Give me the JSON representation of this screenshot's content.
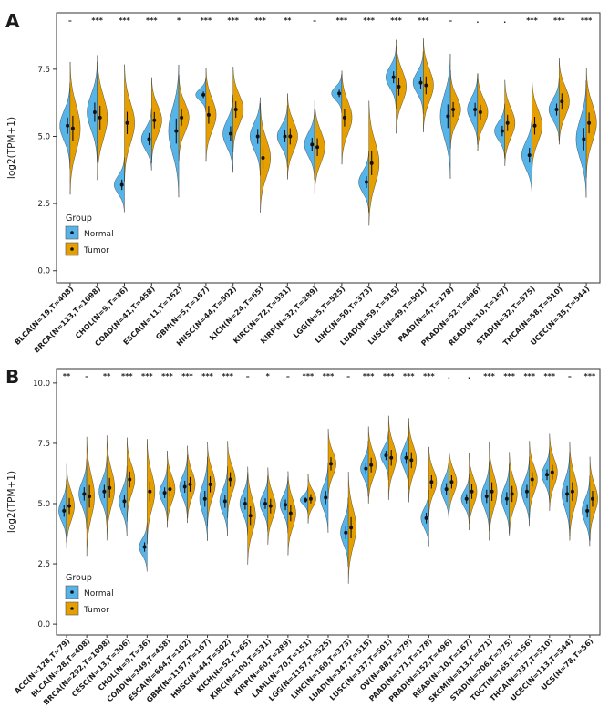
{
  "figure": {
    "background": "#ffffff",
    "colors": {
      "normal": "#56B4E9",
      "tumor": "#E69F00",
      "axis": "#333333"
    },
    "legend": {
      "title": "Group",
      "items": [
        {
          "label": "Normal",
          "key": "normal"
        },
        {
          "label": "Tumor",
          "key": "tumor"
        }
      ]
    }
  },
  "chart_data": [
    {
      "type": "violin",
      "variant": "split-violin-normal-vs-tumor",
      "panel_letter": "A",
      "ylabel": "log2(TPM+1)",
      "ylim": [
        -0.45,
        9.6
      ],
      "yticks": [
        0.0,
        2.5,
        5.0,
        7.5
      ],
      "legend_position": "inside-bottom-left",
      "categories": [
        {
          "label": "BLCA(N=19,T=408)",
          "sig": "–",
          "normal": {
            "mean": 5.4,
            "sd": 0.55
          },
          "tumor": {
            "mean": 5.3,
            "sd": 0.85
          }
        },
        {
          "label": "BRCA(N=113,T=1098)",
          "sig": "***",
          "normal": {
            "mean": 5.9,
            "sd": 0.65
          },
          "tumor": {
            "mean": 5.7,
            "sd": 0.8
          }
        },
        {
          "label": "CHOL(N=9,T=36)",
          "sig": "***",
          "normal": {
            "mean": 3.2,
            "sd": 0.35
          },
          "tumor": {
            "mean": 5.5,
            "sd": 0.75
          }
        },
        {
          "label": "COAD(N=41,T=458)",
          "sig": "***",
          "normal": {
            "mean": 4.9,
            "sd": 0.4
          },
          "tumor": {
            "mean": 5.6,
            "sd": 0.55
          }
        },
        {
          "label": "ESCA(N=11,T=162)",
          "sig": "*",
          "normal": {
            "mean": 5.2,
            "sd": 0.85
          },
          "tumor": {
            "mean": 5.7,
            "sd": 0.55
          }
        },
        {
          "label": "GBM(N=5,T=167)",
          "sig": "***",
          "normal": {
            "mean": 6.55,
            "sd": 0.22
          },
          "tumor": {
            "mean": 5.8,
            "sd": 0.6
          }
        },
        {
          "label": "HNSC(N=44,T=502)",
          "sig": "***",
          "normal": {
            "mean": 5.1,
            "sd": 0.5
          },
          "tumor": {
            "mean": 6.0,
            "sd": 0.55
          }
        },
        {
          "label": "KICH(N=24,T=65)",
          "sig": "***",
          "normal": {
            "mean": 5.0,
            "sd": 0.5
          },
          "tumor": {
            "mean": 4.2,
            "sd": 0.7
          }
        },
        {
          "label": "KIRC(N=72,T=531)",
          "sig": "**",
          "normal": {
            "mean": 5.0,
            "sd": 0.4
          },
          "tumor": {
            "mean": 5.0,
            "sd": 0.55
          }
        },
        {
          "label": "KIRP(N=32,T=289)",
          "sig": "–",
          "normal": {
            "mean": 4.7,
            "sd": 0.45
          },
          "tumor": {
            "mean": 4.6,
            "sd": 0.6
          }
        },
        {
          "label": "LGG(N=5,T=525)",
          "sig": "***",
          "normal": {
            "mean": 6.6,
            "sd": 0.25
          },
          "tumor": {
            "mean": 5.7,
            "sd": 0.6
          }
        },
        {
          "label": "LIHC(N=50,T=373)",
          "sig": "***",
          "normal": {
            "mean": 3.3,
            "sd": 0.4
          },
          "tumor": {
            "mean": 4.0,
            "sd": 0.8
          }
        },
        {
          "label": "LUAD(N=59,T=515)",
          "sig": "***",
          "normal": {
            "mean": 7.2,
            "sd": 0.4
          },
          "tumor": {
            "mean": 6.85,
            "sd": 0.6
          }
        },
        {
          "label": "LUSC(N=49,T=501)",
          "sig": "***",
          "normal": {
            "mean": 7.0,
            "sd": 0.4
          },
          "tumor": {
            "mean": 6.9,
            "sd": 0.6
          }
        },
        {
          "label": "PAAD(N=4,T=178)",
          "sig": "–",
          "normal": {
            "mean": 5.75,
            "sd": 0.8
          },
          "tumor": {
            "mean": 6.0,
            "sd": 0.5
          }
        },
        {
          "label": "PRAD(N=52,T=496)",
          "sig": ".",
          "normal": {
            "mean": 6.0,
            "sd": 0.45
          },
          "tumor": {
            "mean": 5.9,
            "sd": 0.5
          }
        },
        {
          "label": "READ(N=10,T=167)",
          "sig": ".",
          "normal": {
            "mean": 5.2,
            "sd": 0.35
          },
          "tumor": {
            "mean": 5.5,
            "sd": 0.55
          }
        },
        {
          "label": "STAD(N=32,T=375)",
          "sig": "***",
          "normal": {
            "mean": 4.3,
            "sd": 0.5
          },
          "tumor": {
            "mean": 5.4,
            "sd": 0.6
          }
        },
        {
          "label": "THCA(N=58,T=510)",
          "sig": "***",
          "normal": {
            "mean": 6.0,
            "sd": 0.4
          },
          "tumor": {
            "mean": 6.3,
            "sd": 0.55
          }
        },
        {
          "label": "UCEC(N=35,T=544)",
          "sig": "***",
          "normal": {
            "mean": 4.9,
            "sd": 0.75
          },
          "tumor": {
            "mean": 5.5,
            "sd": 0.7
          }
        }
      ]
    },
    {
      "type": "violin",
      "variant": "split-violin-normal-vs-tumor",
      "panel_letter": "B",
      "ylabel": "log2(TPM+1)",
      "ylim": [
        -0.45,
        10.6
      ],
      "yticks": [
        0.0,
        2.5,
        5.0,
        7.5,
        10.0
      ],
      "legend_position": "inside-bottom-left",
      "categories": [
        {
          "label": "ACC(N=128,T=79)",
          "sig": "**",
          "normal": {
            "mean": 4.7,
            "sd": 0.45
          },
          "tumor": {
            "mean": 4.9,
            "sd": 0.6
          }
        },
        {
          "label": "BLCA(N=28,T=408)",
          "sig": "–",
          "normal": {
            "mean": 5.4,
            "sd": 0.5
          },
          "tumor": {
            "mean": 5.3,
            "sd": 0.85
          }
        },
        {
          "label": "BRCA(N=292,T=1098)",
          "sig": "**",
          "normal": {
            "mean": 5.5,
            "sd": 0.5
          },
          "tumor": {
            "mean": 5.65,
            "sd": 0.75
          }
        },
        {
          "label": "CESC(N=13,T=306)",
          "sig": "***",
          "normal": {
            "mean": 5.1,
            "sd": 0.5
          },
          "tumor": {
            "mean": 6.0,
            "sd": 0.6
          }
        },
        {
          "label": "CHOL(N=9,T=36)",
          "sig": "***",
          "normal": {
            "mean": 3.2,
            "sd": 0.35
          },
          "tumor": {
            "mean": 5.5,
            "sd": 0.75
          }
        },
        {
          "label": "COAD(N=349,T=458)",
          "sig": "***",
          "normal": {
            "mean": 5.45,
            "sd": 0.4
          },
          "tumor": {
            "mean": 5.6,
            "sd": 0.55
          }
        },
        {
          "label": "ESCA(N=664,T=162)",
          "sig": "***",
          "normal": {
            "mean": 5.7,
            "sd": 0.45
          },
          "tumor": {
            "mean": 5.8,
            "sd": 0.55
          }
        },
        {
          "label": "GBM(N=1157,T=167)",
          "sig": "***",
          "normal": {
            "mean": 5.2,
            "sd": 0.6
          },
          "tumor": {
            "mean": 5.8,
            "sd": 0.6
          }
        },
        {
          "label": "HNSC(N=44,T=502)",
          "sig": "***",
          "normal": {
            "mean": 5.1,
            "sd": 0.5
          },
          "tumor": {
            "mean": 6.0,
            "sd": 0.55
          }
        },
        {
          "label": "KICH(N=52,T=65)",
          "sig": "–",
          "normal": {
            "mean": 5.0,
            "sd": 0.45
          },
          "tumor": {
            "mean": 4.5,
            "sd": 0.7
          }
        },
        {
          "label": "KIRC(N=100,T=531)",
          "sig": "*",
          "normal": {
            "mean": 5.0,
            "sd": 0.4
          },
          "tumor": {
            "mean": 4.9,
            "sd": 0.55
          }
        },
        {
          "label": "KIRP(N=60,T=289)",
          "sig": "–",
          "normal": {
            "mean": 4.95,
            "sd": 0.4
          },
          "tumor": {
            "mean": 4.6,
            "sd": 0.6
          }
        },
        {
          "label": "LAML(N=70,T=151)",
          "sig": "***",
          "normal": {
            "mean": 5.15,
            "sd": 0.2
          },
          "tumor": {
            "mean": 5.2,
            "sd": 0.35
          }
        },
        {
          "label": "LGG(N=1157,T=525)",
          "sig": "***",
          "normal": {
            "mean": 5.25,
            "sd": 0.5
          },
          "tumor": {
            "mean": 6.65,
            "sd": 0.5
          }
        },
        {
          "label": "LIHC(N=160,T=373)",
          "sig": "–",
          "normal": {
            "mean": 3.8,
            "sd": 0.5
          },
          "tumor": {
            "mean": 4.0,
            "sd": 0.8
          }
        },
        {
          "label": "LUAD(N=347,T=515)",
          "sig": "***",
          "normal": {
            "mean": 6.45,
            "sd": 0.4
          },
          "tumor": {
            "mean": 6.6,
            "sd": 0.55
          }
        },
        {
          "label": "LUSC(N=337,T=501)",
          "sig": "***",
          "normal": {
            "mean": 7.0,
            "sd": 0.35
          },
          "tumor": {
            "mean": 6.9,
            "sd": 0.6
          }
        },
        {
          "label": "OV(N=88,T=379)",
          "sig": "***",
          "normal": {
            "mean": 6.9,
            "sd": 0.45
          },
          "tumor": {
            "mean": 6.8,
            "sd": 0.6
          }
        },
        {
          "label": "PAAD(N=171,T=178)",
          "sig": "***",
          "normal": {
            "mean": 4.4,
            "sd": 0.4
          },
          "tumor": {
            "mean": 5.9,
            "sd": 0.5
          }
        },
        {
          "label": "PRAD(N=152,T=496)",
          "sig": ".",
          "normal": {
            "mean": 5.6,
            "sd": 0.45
          },
          "tumor": {
            "mean": 5.9,
            "sd": 0.5
          }
        },
        {
          "label": "READ(N=10,T=167)",
          "sig": ".",
          "normal": {
            "mean": 5.2,
            "sd": 0.35
          },
          "tumor": {
            "mean": 5.5,
            "sd": 0.55
          }
        },
        {
          "label": "SKCM(N=813,T=471)",
          "sig": "***",
          "normal": {
            "mean": 5.3,
            "sd": 0.5
          },
          "tumor": {
            "mean": 5.5,
            "sd": 0.7
          }
        },
        {
          "label": "STAD(N=206,T=375)",
          "sig": "***",
          "normal": {
            "mean": 5.2,
            "sd": 0.5
          },
          "tumor": {
            "mean": 5.4,
            "sd": 0.6
          }
        },
        {
          "label": "TGCT(N=165,T=156)",
          "sig": "***",
          "normal": {
            "mean": 5.5,
            "sd": 0.5
          },
          "tumor": {
            "mean": 6.0,
            "sd": 0.55
          }
        },
        {
          "label": "THCA(N=337,T=510)",
          "sig": "***",
          "normal": {
            "mean": 6.2,
            "sd": 0.4
          },
          "tumor": {
            "mean": 6.3,
            "sd": 0.55
          }
        },
        {
          "label": "UCEC(N=113,T=544)",
          "sig": "–",
          "normal": {
            "mean": 5.4,
            "sd": 0.6
          },
          "tumor": {
            "mean": 5.5,
            "sd": 0.7
          }
        },
        {
          "label": "UCS(N=78,T=56)",
          "sig": "***",
          "normal": {
            "mean": 4.7,
            "sd": 0.5
          },
          "tumor": {
            "mean": 5.2,
            "sd": 0.6
          }
        }
      ]
    }
  ]
}
